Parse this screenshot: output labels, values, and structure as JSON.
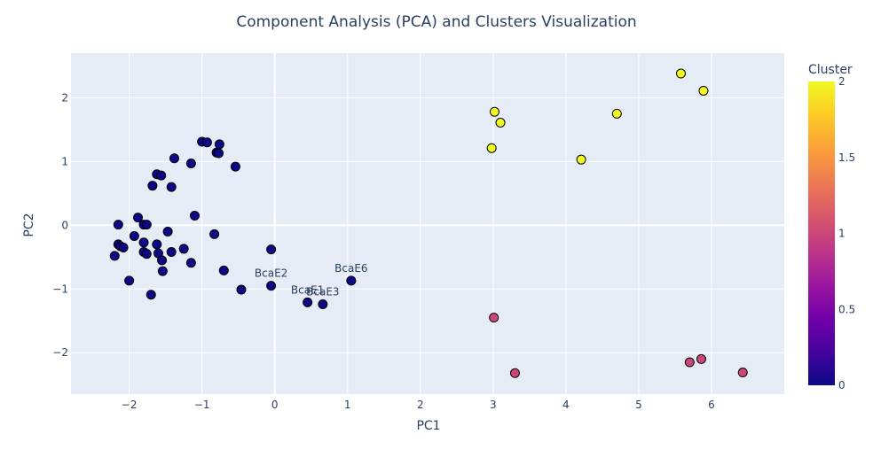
{
  "chart_data": {
    "type": "scatter",
    "title": "Component Analysis (PCA) and Clusters Visualization",
    "xlabel": "PC1",
    "ylabel": "PC2",
    "xlim": [
      -2.8,
      7.0
    ],
    "ylim": [
      -2.65,
      2.7
    ],
    "xticks": [
      -2,
      -1,
      0,
      1,
      2,
      3,
      4,
      5,
      6
    ],
    "yticks": [
      -2,
      -1,
      0,
      1,
      2
    ],
    "grid": true,
    "colorbar": {
      "title": "Cluster",
      "range": [
        0,
        2
      ],
      "ticks": [
        "0",
        "0.5",
        "1",
        "1.5",
        "2"
      ],
      "colorscale": [
        "#0d0887",
        "#46039f",
        "#7201a8",
        "#9c179e",
        "#bd3786",
        "#d8576b",
        "#ed7953",
        "#fb9f3a",
        "#fdca26",
        "#f0f921"
      ]
    },
    "points": [
      {
        "x": -2.2,
        "y": -0.48,
        "cluster": 0
      },
      {
        "x": -2.15,
        "y": 0.01,
        "cluster": 0
      },
      {
        "x": -2.15,
        "y": -0.3,
        "cluster": 0
      },
      {
        "x": -2.12,
        "y": -0.33,
        "cluster": 0
      },
      {
        "x": -2.08,
        "y": -0.35,
        "cluster": 0
      },
      {
        "x": -2.0,
        "y": -0.87,
        "cluster": 0
      },
      {
        "x": -1.93,
        "y": -0.17,
        "cluster": 0
      },
      {
        "x": -1.88,
        "y": 0.12,
        "cluster": 0
      },
      {
        "x": -1.8,
        "y": 0.01,
        "cluster": 0
      },
      {
        "x": -1.8,
        "y": -0.27,
        "cluster": 0
      },
      {
        "x": -1.8,
        "y": -0.42,
        "cluster": 0
      },
      {
        "x": -1.76,
        "y": 0.01,
        "cluster": 0
      },
      {
        "x": -1.76,
        "y": -0.45,
        "cluster": 0
      },
      {
        "x": -1.7,
        "y": -1.09,
        "cluster": 0
      },
      {
        "x": -1.68,
        "y": 0.62,
        "cluster": 0
      },
      {
        "x": -1.62,
        "y": 0.8,
        "cluster": 0
      },
      {
        "x": -1.62,
        "y": -0.3,
        "cluster": 0
      },
      {
        "x": -1.6,
        "y": -0.44,
        "cluster": 0
      },
      {
        "x": -1.56,
        "y": 0.78,
        "cluster": 0
      },
      {
        "x": -1.55,
        "y": -0.55,
        "cluster": 0
      },
      {
        "x": -1.54,
        "y": -0.72,
        "cluster": 0
      },
      {
        "x": -1.47,
        "y": -0.1,
        "cluster": 0
      },
      {
        "x": -1.42,
        "y": 0.6,
        "cluster": 0
      },
      {
        "x": -1.42,
        "y": -0.42,
        "cluster": 0
      },
      {
        "x": -1.38,
        "y": 1.05,
        "cluster": 0
      },
      {
        "x": -1.25,
        "y": -0.37,
        "cluster": 0
      },
      {
        "x": -1.15,
        "y": 0.97,
        "cluster": 0
      },
      {
        "x": -1.15,
        "y": -0.59,
        "cluster": 0
      },
      {
        "x": -1.1,
        "y": 0.15,
        "cluster": 0
      },
      {
        "x": -1.0,
        "y": 1.31,
        "cluster": 0
      },
      {
        "x": -0.93,
        "y": 1.3,
        "cluster": 0
      },
      {
        "x": -0.83,
        "y": -0.14,
        "cluster": 0
      },
      {
        "x": -0.8,
        "y": 1.14,
        "cluster": 0
      },
      {
        "x": -0.77,
        "y": 1.13,
        "cluster": 0
      },
      {
        "x": -0.76,
        "y": 1.27,
        "cluster": 0
      },
      {
        "x": -0.7,
        "y": -0.71,
        "cluster": 0
      },
      {
        "x": -0.54,
        "y": 0.92,
        "cluster": 0
      },
      {
        "x": -0.46,
        "y": -1.01,
        "cluster": 0
      },
      {
        "x": -0.05,
        "y": -0.38,
        "cluster": 0
      },
      {
        "x": -0.05,
        "y": -0.95,
        "cluster": 0,
        "label": "BcaE2"
      },
      {
        "x": 0.45,
        "y": -1.21,
        "cluster": 0,
        "label": "BcaE1"
      },
      {
        "x": 0.66,
        "y": -1.24,
        "cluster": 0,
        "label": "BcaE3"
      },
      {
        "x": 1.05,
        "y": -0.87,
        "cluster": 0,
        "label": "BcaE6"
      },
      {
        "x": 2.98,
        "y": 1.21,
        "cluster": 2
      },
      {
        "x": 3.02,
        "y": 1.78,
        "cluster": 2
      },
      {
        "x": 3.1,
        "y": 1.61,
        "cluster": 2
      },
      {
        "x": 4.21,
        "y": 1.03,
        "cluster": 2
      },
      {
        "x": 4.7,
        "y": 1.75,
        "cluster": 2
      },
      {
        "x": 5.58,
        "y": 2.38,
        "cluster": 2
      },
      {
        "x": 5.89,
        "y": 2.11,
        "cluster": 2
      },
      {
        "x": 3.01,
        "y": -1.45,
        "cluster": 1
      },
      {
        "x": 3.3,
        "y": -2.32,
        "cluster": 1
      },
      {
        "x": 5.7,
        "y": -2.15,
        "cluster": 1
      },
      {
        "x": 5.86,
        "y": -2.1,
        "cluster": 1
      },
      {
        "x": 6.43,
        "y": -2.31,
        "cluster": 1
      }
    ]
  }
}
